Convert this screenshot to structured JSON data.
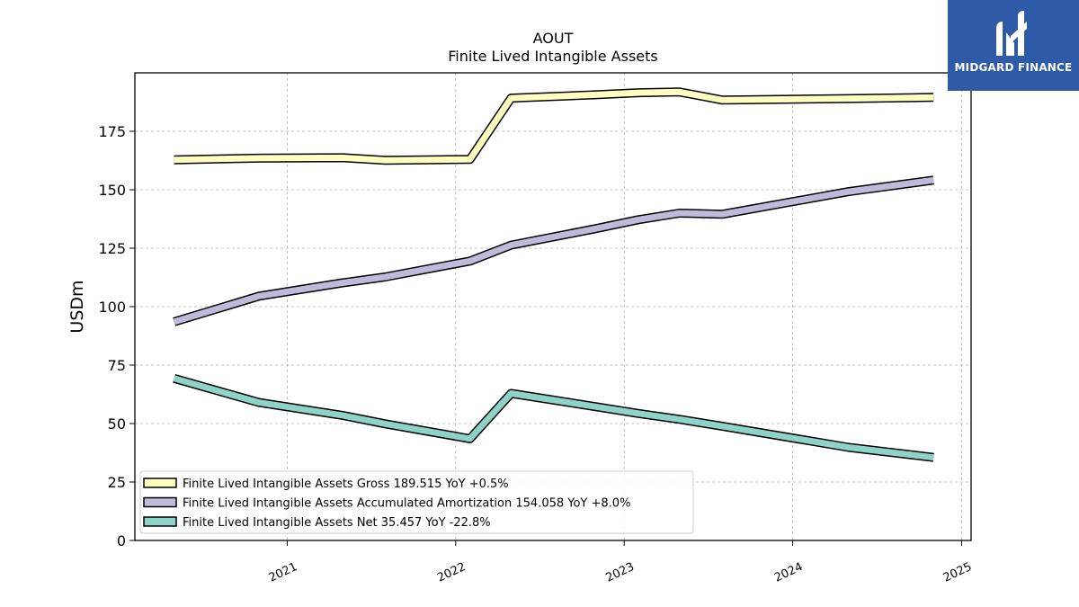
{
  "chart_data": {
    "type": "line",
    "title": "AOUT",
    "subtitle": "Finite Lived Intangible Assets",
    "ylabel": "USDm",
    "xlabel": "",
    "ylim": [
      0,
      200
    ],
    "yticks": [
      0,
      25,
      50,
      75,
      100,
      125,
      150,
      175
    ],
    "xticks": [
      "2021",
      "2022",
      "2023",
      "2024",
      "2025"
    ],
    "grid": true,
    "legend_position": "bottom-left",
    "x": [
      "2020-05-01",
      "2020-11-01",
      "2021-05-01",
      "2021-08-01",
      "2022-02-01",
      "2022-05-01",
      "2022-11-01",
      "2023-02-01",
      "2023-05-01",
      "2023-08-01",
      "2024-05-01",
      "2024-11-01"
    ],
    "series": [
      {
        "name": "Finite Lived Intangible Assets Gross",
        "legend_label": "Finite Lived Intangible Assets Gross  189.515 YoY +0.5%",
        "color": "#ffffbf",
        "values": [
          162.8,
          163.5,
          163.7,
          162.6,
          163.0,
          189.2,
          190.6,
          191.5,
          191.8,
          188.4,
          189.0,
          189.5
        ]
      },
      {
        "name": "Finite Lived Intangible Assets Accumulated Amortization",
        "legend_label": "Finite Lived Intangible Assets Accumulated Amortization  154.058 YoY +8.0%",
        "color": "#bebada",
        "values": [
          93.5,
          104.5,
          110.2,
          112.7,
          119.5,
          126.3,
          133.4,
          137.2,
          140.0,
          139.5,
          149.2,
          154.1
        ]
      },
      {
        "name": "Finite Lived Intangible Assets Net",
        "legend_label": "Finite Lived Intangible Assets Net  35.457 YoY -22.8%",
        "color": "#8dd3c7",
        "values": [
          69.3,
          59.0,
          53.5,
          49.9,
          43.5,
          62.9,
          57.2,
          54.3,
          51.8,
          48.9,
          39.8,
          35.5
        ]
      }
    ]
  },
  "logo": {
    "text": "MIDGARD FINANCE",
    "icon": "midgard-logo-icon",
    "background": "#2e5aa8"
  }
}
